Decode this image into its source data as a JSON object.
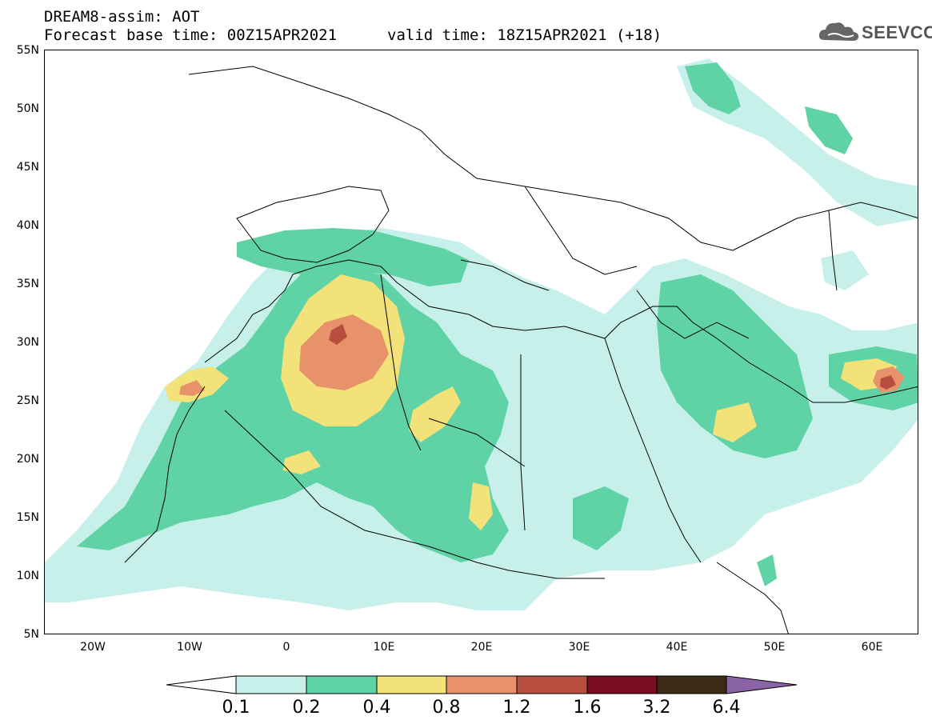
{
  "header": {
    "line1": "DREAM8-assim: AOT",
    "line2": "Forecast base time: 00Z15APR2021",
    "line3": "valid time: 18Z15APR2021 (+18)"
  },
  "logo": {
    "text": "SEEVCCC",
    "icon": "cloud-icon"
  },
  "map": {
    "lat_ticks": [
      "55N",
      "50N",
      "45N",
      "40N",
      "35N",
      "30N",
      "25N",
      "20N",
      "15N",
      "10N",
      "5N"
    ],
    "lon_ticks": [
      "20W",
      "10W",
      "0",
      "10E",
      "20E",
      "30E",
      "40E",
      "50E",
      "60E"
    ],
    "extent": {
      "lon": [
        -25,
        65
      ],
      "lat": [
        5,
        55
      ]
    }
  },
  "colorbar": {
    "labels": [
      "0.1",
      "0.2",
      "0.4",
      "0.8",
      "1.2",
      "1.6",
      "3.2",
      "6.4"
    ],
    "colors": [
      "#ffffff",
      "#c8f0ea",
      "#5fd3a6",
      "#f3e17a",
      "#e7926a",
      "#b84f3e",
      "#7a0e22",
      "#3a2a16",
      "#8a64a4"
    ]
  }
}
